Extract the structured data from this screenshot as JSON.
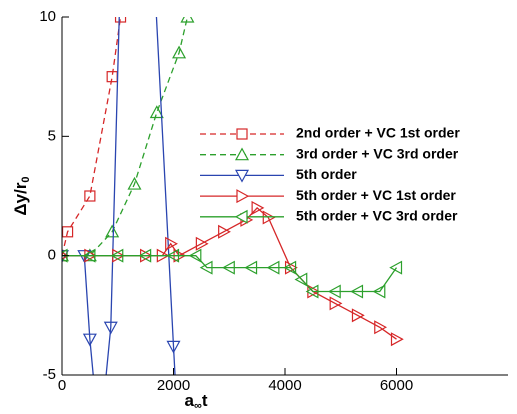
{
  "chart_data": {
    "type": "line",
    "ylabel": {
      "main": "Δy/r",
      "sub": "0"
    },
    "xlabel": {
      "main": "a",
      "sub": "∞",
      "tail": "t"
    },
    "xlim": [
      0,
      8000
    ],
    "xticks": [
      0,
      2000,
      4000,
      6000
    ],
    "ylim": [
      -5,
      10
    ],
    "yticks": [
      -5,
      0,
      5,
      10
    ],
    "legend": "upper right",
    "series": [
      {
        "name": "2nd order + VC 1st order",
        "color": "#d62728",
        "dash": true,
        "marker": "square",
        "x": [
          0,
          100,
          500,
          900,
          1050
        ],
        "values": [
          0,
          1,
          2.5,
          7.5,
          10
        ]
      },
      {
        "name": "3rd order + VC 3rd order",
        "color": "#2ca02c",
        "dash": true,
        "marker": "triangle-up",
        "x": [
          0,
          500,
          900,
          1300,
          1700,
          2100,
          2250
        ],
        "values": [
          0,
          0,
          1,
          3,
          6,
          8.5,
          10
        ]
      },
      {
        "name": "5th order",
        "color": "#2a45b0",
        "dash": false,
        "marker": "triangle-down",
        "x": [
          0,
          400,
          500,
          600,
          750,
          875,
          1050,
          1650,
          2000,
          2050
        ],
        "values": [
          0,
          0,
          -3.5,
          -6,
          -6,
          -3,
          12,
          12,
          -3.8,
          -6
        ]
      },
      {
        "name": "5th order + VC 1st order",
        "color": "#d62728",
        "dash": false,
        "marker": "triangle-right",
        "x": [
          0,
          500,
          1000,
          1500,
          1800,
          1950,
          2100,
          2500,
          2900,
          3300,
          3500,
          3700,
          4100,
          4500,
          4900,
          5300,
          5700,
          6000
        ],
        "values": [
          0,
          0,
          0,
          0,
          0,
          0.5,
          0,
          0.5,
          1,
          1.5,
          2,
          1.6,
          -0.5,
          -1.5,
          -2,
          -2.5,
          -3,
          -3.5
        ]
      },
      {
        "name": "5th order + VC 3rd order",
        "color": "#2ca02c",
        "dash": false,
        "marker": "triangle-left",
        "x": [
          0,
          500,
          1000,
          1500,
          2000,
          2400,
          2600,
          3000,
          3400,
          3800,
          4100,
          4300,
          4500,
          4900,
          5300,
          5700,
          6000
        ],
        "values": [
          0,
          0,
          0,
          0,
          0,
          0,
          -0.5,
          -0.5,
          -0.5,
          -0.5,
          -0.5,
          -1,
          -1.5,
          -1.5,
          -1.5,
          -1.5,
          -0.5
        ]
      }
    ]
  }
}
